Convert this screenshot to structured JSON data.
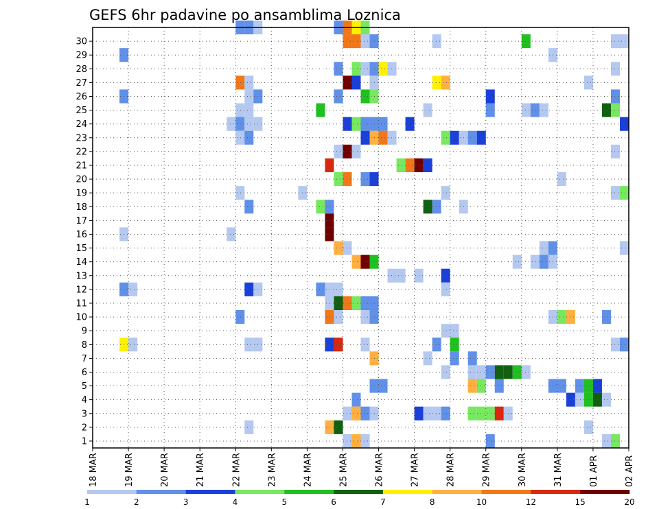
{
  "chart_data": {
    "type": "heatmap",
    "title": "GEFS 6hr padavine po ansamblima Loznica",
    "xlabel": "",
    "ylabel": "",
    "x_ticks": [
      "18 MAR",
      "19 MAR",
      "20 MAR",
      "21 MAR",
      "22 MAR",
      "23 MAR",
      "24 MAR",
      "25 MAR",
      "26 MAR",
      "27 MAR",
      "28 MAR",
      "29 MAR",
      "30 MAR",
      "31 MAR",
      "01 APR",
      "02 APR"
    ],
    "y_ticks": [
      "1",
      "2",
      "3",
      "4",
      "5",
      "6",
      "7",
      "8",
      "9",
      "10",
      "11",
      "12",
      "13",
      "14",
      "15",
      "16",
      "17",
      "18",
      "19",
      "20",
      "21",
      "22",
      "23",
      "24",
      "25",
      "26",
      "27",
      "28",
      "29",
      "30"
    ],
    "members": 30,
    "steps_per_day": 4,
    "grid": "dotted",
    "levels": [
      "1",
      "2",
      "3",
      "4",
      "5",
      "6",
      "7",
      "8",
      "10",
      "12",
      "15",
      "20"
    ],
    "level_colors": [
      "#b4c8f0",
      "#6090e8",
      "#1a40d8",
      "#78e860",
      "#20c020",
      "#106010",
      "#fff000",
      "#ffb040",
      "#f07818",
      "#d82810",
      "#700000"
    ],
    "cells": [
      {
        "m": 30,
        "t": 16,
        "c": 1
      },
      {
        "m": 30,
        "t": 17,
        "c": 1
      },
      {
        "m": 30,
        "t": 18,
        "c": 0
      },
      {
        "m": 30,
        "t": 27,
        "c": 1
      },
      {
        "m": 30,
        "t": 28,
        "c": 8
      },
      {
        "m": 30,
        "t": 29,
        "c": 6
      },
      {
        "m": 30,
        "t": 30,
        "c": 3
      },
      {
        "m": 29,
        "t": 28,
        "c": 8
      },
      {
        "m": 29,
        "t": 29,
        "c": 8
      },
      {
        "m": 29,
        "t": 30,
        "c": 0
      },
      {
        "m": 29,
        "t": 31,
        "c": 1
      },
      {
        "m": 29,
        "t": 38,
        "c": 0
      },
      {
        "m": 29,
        "t": 48,
        "c": 4
      },
      {
        "m": 29,
        "t": 58,
        "c": 0
      },
      {
        "m": 29,
        "t": 59,
        "c": 0
      },
      {
        "m": 28,
        "t": 3,
        "c": 1
      },
      {
        "m": 28,
        "t": 51,
        "c": 0
      },
      {
        "m": 27,
        "t": 27,
        "c": 1
      },
      {
        "m": 27,
        "t": 29,
        "c": 3
      },
      {
        "m": 27,
        "t": 30,
        "c": 0
      },
      {
        "m": 27,
        "t": 31,
        "c": 1
      },
      {
        "m": 27,
        "t": 32,
        "c": 6
      },
      {
        "m": 27,
        "t": 33,
        "c": 0
      },
      {
        "m": 27,
        "t": 58,
        "c": 0
      },
      {
        "m": 26,
        "t": 16,
        "c": 8
      },
      {
        "m": 26,
        "t": 17,
        "c": 0
      },
      {
        "m": 26,
        "t": 28,
        "c": 10
      },
      {
        "m": 26,
        "t": 29,
        "c": 2
      },
      {
        "m": 26,
        "t": 31,
        "c": 0
      },
      {
        "m": 26,
        "t": 38,
        "c": 6
      },
      {
        "m": 26,
        "t": 39,
        "c": 7
      },
      {
        "m": 26,
        "t": 55,
        "c": 0
      },
      {
        "m": 25,
        "t": 3,
        "c": 1
      },
      {
        "m": 25,
        "t": 17,
        "c": 0
      },
      {
        "m": 25,
        "t": 18,
        "c": 1
      },
      {
        "m": 25,
        "t": 27,
        "c": 1
      },
      {
        "m": 25,
        "t": 30,
        "c": 4
      },
      {
        "m": 25,
        "t": 31,
        "c": 3
      },
      {
        "m": 25,
        "t": 44,
        "c": 2
      },
      {
        "m": 25,
        "t": 58,
        "c": 1
      },
      {
        "m": 24,
        "t": 16,
        "c": 0
      },
      {
        "m": 24,
        "t": 17,
        "c": 0
      },
      {
        "m": 24,
        "t": 25,
        "c": 4
      },
      {
        "m": 24,
        "t": 37,
        "c": 0
      },
      {
        "m": 24,
        "t": 44,
        "c": 1
      },
      {
        "m": 24,
        "t": 48,
        "c": 0
      },
      {
        "m": 24,
        "t": 49,
        "c": 1
      },
      {
        "m": 24,
        "t": 50,
        "c": 0
      },
      {
        "m": 24,
        "t": 57,
        "c": 5
      },
      {
        "m": 24,
        "t": 58,
        "c": 3
      },
      {
        "m": 23,
        "t": 15,
        "c": 0
      },
      {
        "m": 23,
        "t": 16,
        "c": 1
      },
      {
        "m": 23,
        "t": 17,
        "c": 0
      },
      {
        "m": 23,
        "t": 18,
        "c": 0
      },
      {
        "m": 23,
        "t": 28,
        "c": 2
      },
      {
        "m": 23,
        "t": 29,
        "c": 3
      },
      {
        "m": 23,
        "t": 30,
        "c": 1
      },
      {
        "m": 23,
        "t": 31,
        "c": 1
      },
      {
        "m": 23,
        "t": 32,
        "c": 1
      },
      {
        "m": 23,
        "t": 35,
        "c": 2
      },
      {
        "m": 23,
        "t": 59,
        "c": 2
      },
      {
        "m": 22,
        "t": 16,
        "c": 0
      },
      {
        "m": 22,
        "t": 17,
        "c": 1
      },
      {
        "m": 22,
        "t": 30,
        "c": 2
      },
      {
        "m": 22,
        "t": 31,
        "c": 7
      },
      {
        "m": 22,
        "t": 32,
        "c": 8
      },
      {
        "m": 22,
        "t": 33,
        "c": 0
      },
      {
        "m": 22,
        "t": 39,
        "c": 3
      },
      {
        "m": 22,
        "t": 40,
        "c": 2
      },
      {
        "m": 22,
        "t": 41,
        "c": 0
      },
      {
        "m": 22,
        "t": 42,
        "c": 1
      },
      {
        "m": 22,
        "t": 43,
        "c": 2
      },
      {
        "m": 21,
        "t": 27,
        "c": 0
      },
      {
        "m": 21,
        "t": 28,
        "c": 10
      },
      {
        "m": 21,
        "t": 29,
        "c": 0
      },
      {
        "m": 21,
        "t": 58,
        "c": 0
      },
      {
        "m": 20,
        "t": 26,
        "c": 9
      },
      {
        "m": 20,
        "t": 34,
        "c": 3
      },
      {
        "m": 20,
        "t": 35,
        "c": 8
      },
      {
        "m": 20,
        "t": 36,
        "c": 10
      },
      {
        "m": 20,
        "t": 37,
        "c": 2
      },
      {
        "m": 19,
        "t": 27,
        "c": 3
      },
      {
        "m": 19,
        "t": 28,
        "c": 8
      },
      {
        "m": 19,
        "t": 30,
        "c": 1
      },
      {
        "m": 19,
        "t": 31,
        "c": 2
      },
      {
        "m": 19,
        "t": 52,
        "c": 0
      },
      {
        "m": 18,
        "t": 16,
        "c": 0
      },
      {
        "m": 18,
        "t": 23,
        "c": 0
      },
      {
        "m": 18,
        "t": 39,
        "c": 0
      },
      {
        "m": 18,
        "t": 58,
        "c": 0
      },
      {
        "m": 18,
        "t": 59,
        "c": 3
      },
      {
        "m": 17,
        "t": 17,
        "c": 1
      },
      {
        "m": 17,
        "t": 25,
        "c": 3
      },
      {
        "m": 17,
        "t": 26,
        "c": 1
      },
      {
        "m": 17,
        "t": 37,
        "c": 5
      },
      {
        "m": 17,
        "t": 38,
        "c": 1
      },
      {
        "m": 17,
        "t": 41,
        "c": 0
      },
      {
        "m": 16,
        "t": 26,
        "c": 10
      },
      {
        "m": 15,
        "t": 3,
        "c": 0
      },
      {
        "m": 15,
        "t": 15,
        "c": 0
      },
      {
        "m": 15,
        "t": 26,
        "c": 10
      },
      {
        "m": 14,
        "t": 27,
        "c": 7
      },
      {
        "m": 14,
        "t": 28,
        "c": 0
      },
      {
        "m": 14,
        "t": 50,
        "c": 0
      },
      {
        "m": 14,
        "t": 51,
        "c": 1
      },
      {
        "m": 14,
        "t": 59,
        "c": 0
      },
      {
        "m": 13,
        "t": 29,
        "c": 7
      },
      {
        "m": 13,
        "t": 30,
        "c": 10
      },
      {
        "m": 13,
        "t": 31,
        "c": 4
      },
      {
        "m": 13,
        "t": 47,
        "c": 0
      },
      {
        "m": 13,
        "t": 49,
        "c": 0
      },
      {
        "m": 13,
        "t": 50,
        "c": 1
      },
      {
        "m": 13,
        "t": 51,
        "c": 0
      },
      {
        "m": 12,
        "t": 33,
        "c": 0
      },
      {
        "m": 12,
        "t": 34,
        "c": 0
      },
      {
        "m": 12,
        "t": 36,
        "c": 0
      },
      {
        "m": 12,
        "t": 39,
        "c": 2
      },
      {
        "m": 11,
        "t": 3,
        "c": 1
      },
      {
        "m": 11,
        "t": 4,
        "c": 0
      },
      {
        "m": 11,
        "t": 17,
        "c": 2
      },
      {
        "m": 11,
        "t": 18,
        "c": 0
      },
      {
        "m": 11,
        "t": 25,
        "c": 1
      },
      {
        "m": 11,
        "t": 26,
        "c": 0
      },
      {
        "m": 11,
        "t": 27,
        "c": 0
      },
      {
        "m": 11,
        "t": 39,
        "c": 0
      },
      {
        "m": 10,
        "t": 26,
        "c": 0
      },
      {
        "m": 10,
        "t": 27,
        "c": 5
      },
      {
        "m": 10,
        "t": 28,
        "c": 8
      },
      {
        "m": 10,
        "t": 29,
        "c": 3
      },
      {
        "m": 10,
        "t": 30,
        "c": 1
      },
      {
        "m": 10,
        "t": 31,
        "c": 1
      },
      {
        "m": 9,
        "t": 16,
        "c": 1
      },
      {
        "m": 9,
        "t": 26,
        "c": 8
      },
      {
        "m": 9,
        "t": 27,
        "c": 0
      },
      {
        "m": 9,
        "t": 30,
        "c": 0
      },
      {
        "m": 9,
        "t": 31,
        "c": 1
      },
      {
        "m": 9,
        "t": 51,
        "c": 0
      },
      {
        "m": 9,
        "t": 52,
        "c": 3
      },
      {
        "m": 9,
        "t": 53,
        "c": 7
      },
      {
        "m": 9,
        "t": 57,
        "c": 1
      },
      {
        "m": 8,
        "t": 39,
        "c": 0
      },
      {
        "m": 8,
        "t": 40,
        "c": 0
      },
      {
        "m": 7,
        "t": 3,
        "c": 6
      },
      {
        "m": 7,
        "t": 4,
        "c": 0
      },
      {
        "m": 7,
        "t": 17,
        "c": 0
      },
      {
        "m": 7,
        "t": 18,
        "c": 0
      },
      {
        "m": 7,
        "t": 26,
        "c": 2
      },
      {
        "m": 7,
        "t": 27,
        "c": 9
      },
      {
        "m": 7,
        "t": 30,
        "c": 0
      },
      {
        "m": 7,
        "t": 38,
        "c": 1
      },
      {
        "m": 7,
        "t": 40,
        "c": 4
      },
      {
        "m": 7,
        "t": 58,
        "c": 0
      },
      {
        "m": 7,
        "t": 59,
        "c": 1
      },
      {
        "m": 6,
        "t": 31,
        "c": 7
      },
      {
        "m": 6,
        "t": 37,
        "c": 0
      },
      {
        "m": 6,
        "t": 40,
        "c": 1
      },
      {
        "m": 6,
        "t": 42,
        "c": 1
      },
      {
        "m": 5,
        "t": 39,
        "c": 0
      },
      {
        "m": 5,
        "t": 42,
        "c": 0
      },
      {
        "m": 5,
        "t": 43,
        "c": 0
      },
      {
        "m": 5,
        "t": 44,
        "c": 1
      },
      {
        "m": 5,
        "t": 45,
        "c": 5
      },
      {
        "m": 5,
        "t": 46,
        "c": 5
      },
      {
        "m": 5,
        "t": 47,
        "c": 4
      },
      {
        "m": 5,
        "t": 48,
        "c": 0
      },
      {
        "m": 4,
        "t": 31,
        "c": 1
      },
      {
        "m": 4,
        "t": 32,
        "c": 1
      },
      {
        "m": 4,
        "t": 42,
        "c": 7
      },
      {
        "m": 4,
        "t": 43,
        "c": 3
      },
      {
        "m": 4,
        "t": 45,
        "c": 1
      },
      {
        "m": 4,
        "t": 51,
        "c": 1
      },
      {
        "m": 4,
        "t": 52,
        "c": 1
      },
      {
        "m": 4,
        "t": 54,
        "c": 1
      },
      {
        "m": 4,
        "t": 55,
        "c": 4
      },
      {
        "m": 4,
        "t": 56,
        "c": 2
      },
      {
        "m": 3,
        "t": 29,
        "c": 1
      },
      {
        "m": 3,
        "t": 53,
        "c": 2
      },
      {
        "m": 3,
        "t": 54,
        "c": 0
      },
      {
        "m": 3,
        "t": 55,
        "c": 4
      },
      {
        "m": 3,
        "t": 56,
        "c": 5
      },
      {
        "m": 3,
        "t": 57,
        "c": 0
      },
      {
        "m": 2,
        "t": 28,
        "c": 0
      },
      {
        "m": 2,
        "t": 29,
        "c": 7
      },
      {
        "m": 2,
        "t": 30,
        "c": 1
      },
      {
        "m": 2,
        "t": 31,
        "c": 0
      },
      {
        "m": 2,
        "t": 36,
        "c": 2
      },
      {
        "m": 2,
        "t": 37,
        "c": 0
      },
      {
        "m": 2,
        "t": 38,
        "c": 0
      },
      {
        "m": 2,
        "t": 39,
        "c": 1
      },
      {
        "m": 2,
        "t": 42,
        "c": 3
      },
      {
        "m": 2,
        "t": 43,
        "c": 3
      },
      {
        "m": 2,
        "t": 44,
        "c": 3
      },
      {
        "m": 2,
        "t": 45,
        "c": 9
      },
      {
        "m": 2,
        "t": 46,
        "c": 0
      },
      {
        "m": 1,
        "t": 17,
        "c": 0
      },
      {
        "m": 1,
        "t": 26,
        "c": 7
      },
      {
        "m": 1,
        "t": 27,
        "c": 5
      },
      {
        "m": 1,
        "t": 55,
        "c": 0
      },
      {
        "m": 0,
        "t": 28,
        "c": 0
      },
      {
        "m": 0,
        "t": 29,
        "c": 7
      },
      {
        "m": 0,
        "t": 30,
        "c": 0
      },
      {
        "m": 0,
        "t": 44,
        "c": 1
      },
      {
        "m": 0,
        "t": 57,
        "c": 0
      },
      {
        "m": 0,
        "t": 58,
        "c": 3
      }
    ]
  }
}
